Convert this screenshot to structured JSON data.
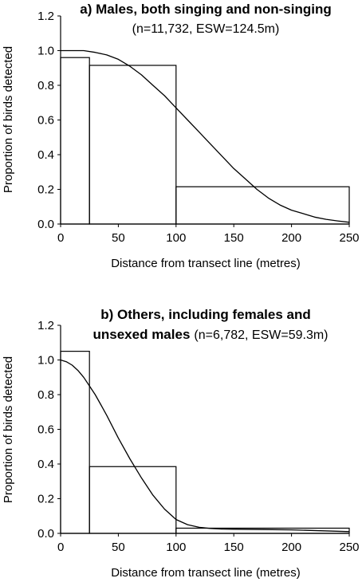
{
  "chart_data": [
    {
      "type": "bar",
      "title": "a) Males, both singing and non-singing",
      "subtitle": "(n=11,732,  ESW=124.5m)",
      "xlabel": "Distance from transect line (metres)",
      "ylabel": "Proportion of birds detected",
      "xlim": [
        0,
        250
      ],
      "ylim": [
        0,
        1.2
      ],
      "xticks": [
        "0",
        "50",
        "100",
        "150",
        "200",
        "250"
      ],
      "yticks": [
        "0.0",
        "0.2",
        "0.4",
        "0.6",
        "0.8",
        "1.0",
        "1.2"
      ],
      "bins": [
        {
          "from": 0,
          "to": 25,
          "value": 0.96
        },
        {
          "from": 25,
          "to": 100,
          "value": 0.915
        },
        {
          "from": 100,
          "to": 250,
          "value": 0.215
        }
      ],
      "curve": {
        "x": [
          0,
          10,
          20,
          30,
          40,
          50,
          60,
          70,
          80,
          90,
          100,
          110,
          120,
          130,
          140,
          150,
          160,
          170,
          180,
          190,
          200,
          210,
          220,
          230,
          240,
          250
        ],
        "y": [
          1.0,
          1.0,
          1.0,
          0.99,
          0.975,
          0.95,
          0.91,
          0.86,
          0.8,
          0.74,
          0.67,
          0.6,
          0.53,
          0.46,
          0.39,
          0.32,
          0.26,
          0.2,
          0.15,
          0.11,
          0.08,
          0.06,
          0.04,
          0.027,
          0.018,
          0.01
        ]
      },
      "grid": false
    },
    {
      "type": "bar",
      "title_lines": [
        "b) Others, including females and",
        "unsexed males"
      ],
      "subtitle": "(n=6,782,  ESW=59.3m)",
      "xlabel": "Distance from transect line (metres)",
      "ylabel": "Proportion of birds detected",
      "xlim": [
        0,
        250
      ],
      "ylim": [
        0,
        1.2
      ],
      "xticks": [
        "0",
        "50",
        "100",
        "150",
        "200",
        "250"
      ],
      "yticks": [
        "0.0",
        "0.2",
        "0.4",
        "0.6",
        "0.8",
        "1.0",
        "1.2"
      ],
      "bins": [
        {
          "from": 0,
          "to": 25,
          "value": 1.05
        },
        {
          "from": 25,
          "to": 100,
          "value": 0.385
        },
        {
          "from": 100,
          "to": 250,
          "value": 0.03
        }
      ],
      "curve": {
        "x": [
          0,
          5,
          10,
          15,
          20,
          25,
          30,
          35,
          40,
          50,
          60,
          70,
          80,
          90,
          100,
          110,
          120,
          130,
          140,
          150,
          175,
          200,
          225,
          250
        ],
        "y": [
          1.0,
          0.99,
          0.97,
          0.94,
          0.9,
          0.85,
          0.8,
          0.74,
          0.68,
          0.55,
          0.43,
          0.32,
          0.22,
          0.14,
          0.08,
          0.05,
          0.035,
          0.028,
          0.025,
          0.024,
          0.022,
          0.02,
          0.015,
          0.01
        ]
      },
      "grid": false
    }
  ]
}
